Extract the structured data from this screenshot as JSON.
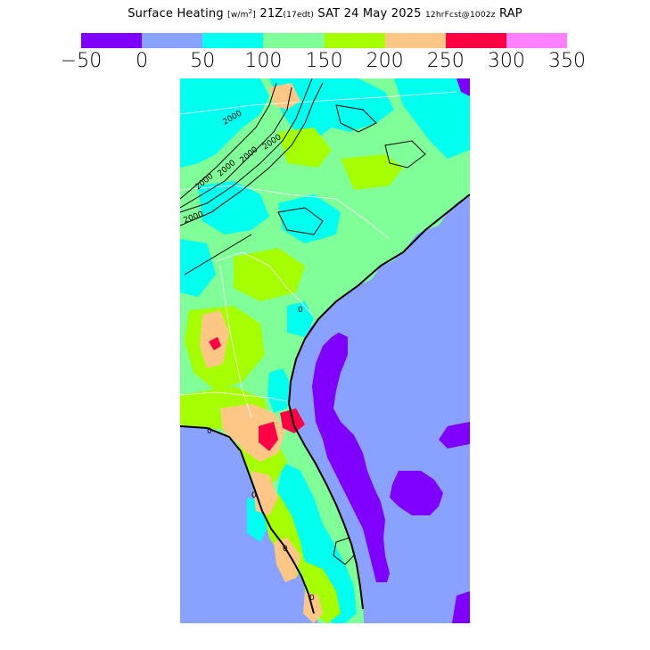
{
  "header": {
    "title_main": "Surface Heating",
    "title_units_open": "[w/m",
    "title_units_sup": "2",
    "title_units_close": "]",
    "title_time": "21Z",
    "title_local": "(17edt)",
    "title_date": "SAT 24 May 2025",
    "title_fcst": "12hrFcst@1002z",
    "title_model": "RAP"
  },
  "legend": {
    "colors": [
      "#8000ff",
      "#8aa2ff",
      "#00ffee",
      "#80ff99",
      "#a6ff00",
      "#ffc785",
      "#ff0044",
      "#ff80ff"
    ],
    "ticks": [
      "−50",
      "0",
      "50",
      "100",
      "150",
      "200",
      "250",
      "300",
      "350"
    ]
  },
  "map": {
    "contour_labels": [
      "2000",
      "2000",
      "2000",
      "2000",
      "2000",
      "2000",
      "0",
      "0",
      "0",
      "0",
      "0"
    ],
    "colors": {
      "ocean": "#8aa2ff",
      "land_green": "#80ff99",
      "land_cyan": "#00ffee",
      "land_lime": "#a6ff00",
      "land_orange": "#ffc785",
      "land_red": "#ff0044",
      "negative_purple": "#8000ff"
    }
  }
}
